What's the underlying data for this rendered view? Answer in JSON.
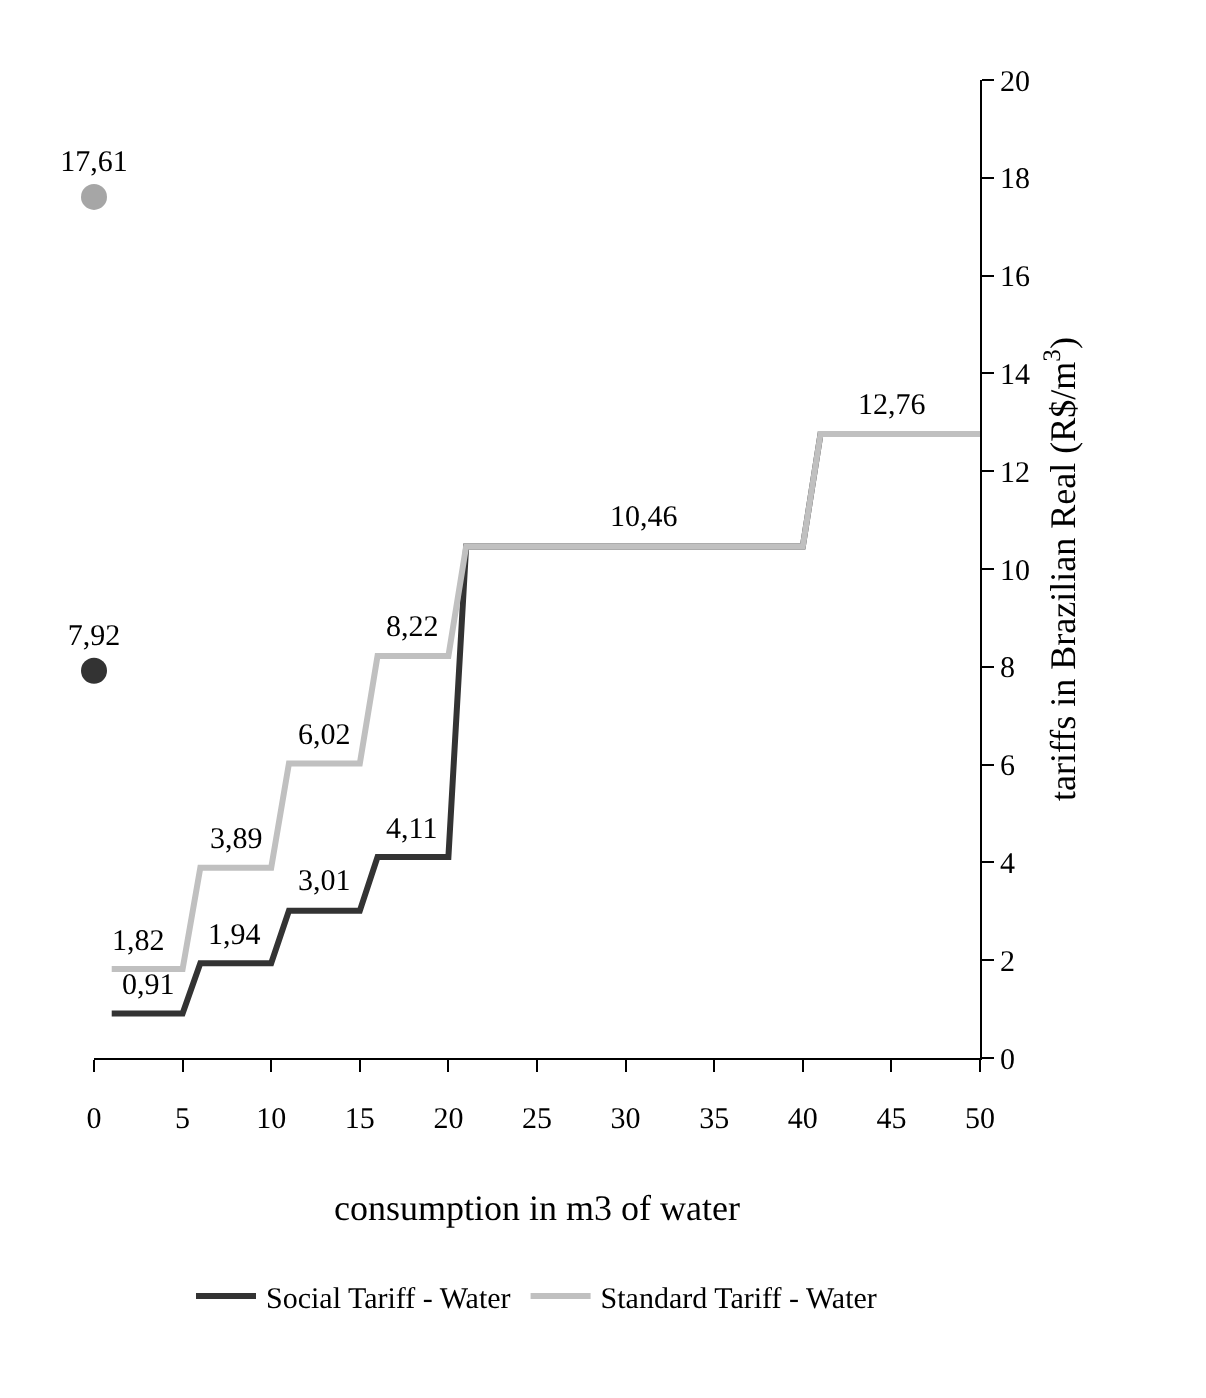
{
  "chart_data": {
    "type": "line",
    "xlabel": "consumption in m3 of water",
    "ylabel": "tariffs in Brazilian Real (R$/m$^{3}$)",
    "xlim": [
      0,
      50
    ],
    "xticks": [
      0,
      5,
      10,
      15,
      20,
      25,
      30,
      35,
      40,
      45,
      50
    ],
    "ylim": [
      0,
      20
    ],
    "yticks": [
      0,
      2,
      4,
      6,
      8,
      10,
      12,
      14,
      16,
      18,
      20
    ],
    "legend": "bottom",
    "marker": "none",
    "line_style": "solid",
    "series": [
      {
        "name": "Social Tariff - Water",
        "color": "#333333",
        "x": [
          1,
          5,
          6,
          10,
          11,
          15,
          16,
          20,
          21,
          40,
          41,
          50
        ],
        "values": [
          0.91,
          0.91,
          1.94,
          1.94,
          3.01,
          3.01,
          4.11,
          4.11,
          10.46,
          10.46,
          12.76,
          12.76
        ]
      },
      {
        "name": "Standard Tariff - Water",
        "color": "#c0c0c0",
        "x": [
          1,
          5,
          6,
          10,
          11,
          15,
          16,
          20,
          21,
          40,
          41,
          50
        ],
        "values": [
          1.82,
          1.82,
          3.89,
          3.89,
          6.02,
          6.02,
          8.22,
          8.22,
          10.46,
          10.46,
          12.76,
          12.76
        ]
      },
      {
        "type": "scatter",
        "marker": "circle",
        "color": "#a6a6a6",
        "x": [
          0
        ],
        "values": [
          17.61
        ],
        "value_labels": [
          "17,61"
        ]
      },
      {
        "type": "scatter",
        "marker": "circle",
        "color": "#333333",
        "x": [
          0
        ],
        "values": [
          7.92
        ],
        "value_labels": [
          "7,92"
        ]
      }
    ],
    "annotations": [
      {
        "text": "0,91",
        "x": 3,
        "y": 0.91
      },
      {
        "text": "1,82",
        "x": 2.5,
        "y": 1.82
      },
      {
        "text": "1,94",
        "x": 8,
        "y": 1.94
      },
      {
        "text": "3,89",
        "x": 8,
        "y": 3.89
      },
      {
        "text": "3,01",
        "x": 13,
        "y": 3.01
      },
      {
        "text": "6,02",
        "x": 13,
        "y": 6.02
      },
      {
        "text": "4,11",
        "x": 18,
        "y": 4.11
      },
      {
        "text": "8,22",
        "x": 18,
        "y": 8.22
      },
      {
        "text": "10,46",
        "x": 31,
        "y": 10.46
      },
      {
        "text": "12,76",
        "x": 45,
        "y": 12.76
      }
    ]
  }
}
